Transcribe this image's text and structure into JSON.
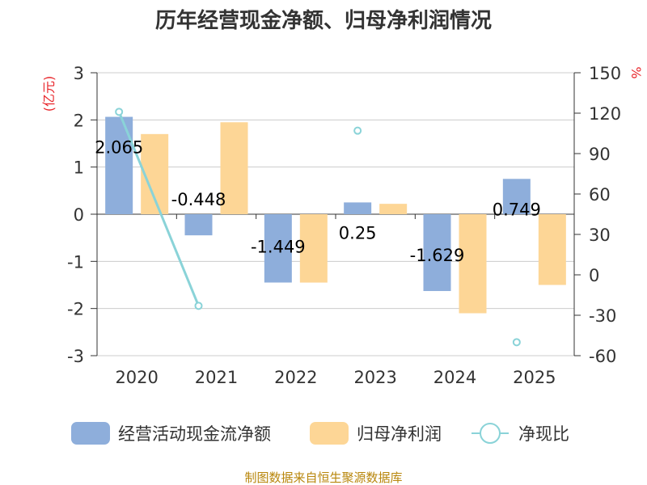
{
  "chart_data": {
    "type": "bar",
    "title": "历年经营现金净额、归母净利润情况",
    "categories": [
      "2020",
      "2021",
      "2022",
      "2023",
      "2024",
      "2025"
    ],
    "left_unit": "(亿元)",
    "right_unit": "%",
    "ylim_left": [
      -3,
      3
    ],
    "ylim_right": [
      -60,
      150
    ],
    "left_ticks": [
      "3",
      "2",
      "1",
      "0",
      "-1",
      "-2",
      "-3"
    ],
    "right_ticks": [
      "150",
      "120",
      "90",
      "60",
      "30",
      "0",
      "-30",
      "-60"
    ],
    "grid": true,
    "legend_position": "bottom",
    "series": [
      {
        "name": "经营活动现金流净额",
        "kind": "bar",
        "axis": "left",
        "color": "#8eaedb",
        "values": [
          2.065,
          -0.448,
          -1.449,
          0.25,
          -1.629,
          0.749
        ],
        "labels": [
          "2.065",
          "-0.448",
          "-1.449",
          "0.25",
          "-1.629",
          "0.749"
        ]
      },
      {
        "name": "归母净利润",
        "kind": "bar",
        "axis": "left",
        "color": "#fdd696",
        "values": [
          1.7,
          1.95,
          -1.45,
          0.22,
          -2.1,
          -1.5
        ]
      },
      {
        "name": "净现比",
        "kind": "line",
        "axis": "right",
        "color": "#8ad3d8",
        "values": [
          121,
          -23,
          null,
          107,
          null,
          -50
        ]
      }
    ]
  },
  "source": "制图数据来自恒生聚源数据库"
}
